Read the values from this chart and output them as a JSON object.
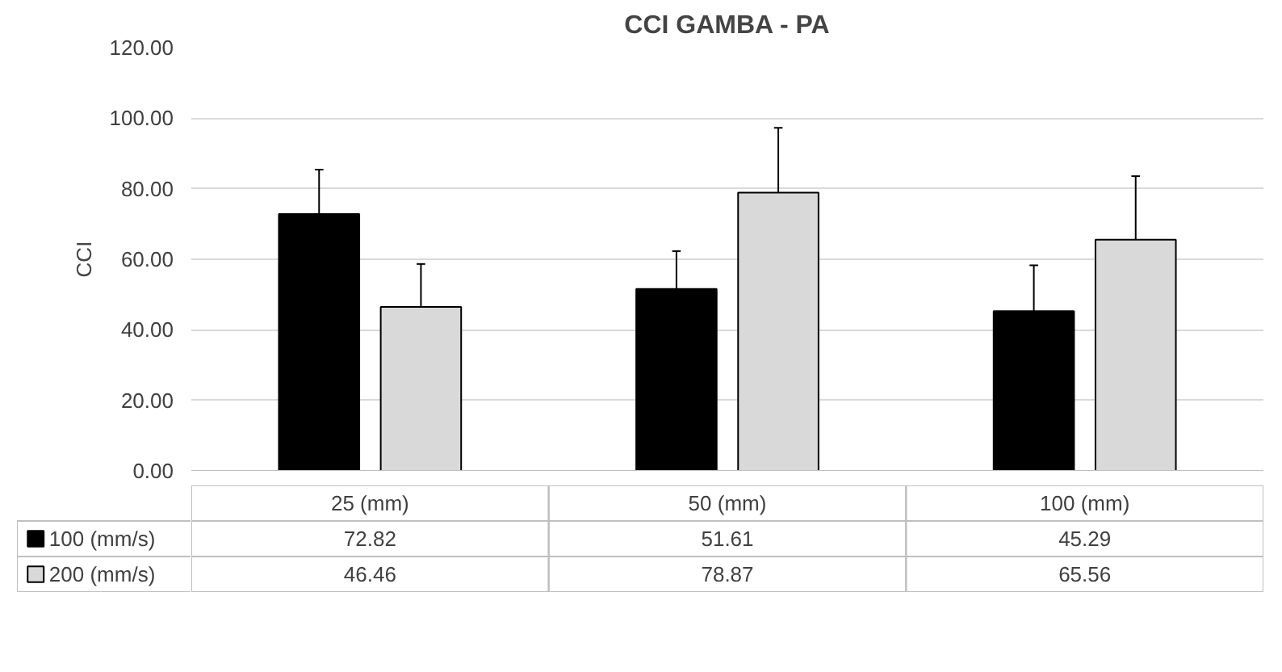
{
  "chart_data": {
    "type": "bar",
    "title": "CCI GAMBA - PA",
    "ylabel": "CCI",
    "categories": [
      "25 (mm)",
      "50 (mm)",
      "100 (mm)"
    ],
    "series": [
      {
        "name": "100 (mm/s)",
        "color": "#000000",
        "values": [
          72.82,
          51.61,
          45.29
        ],
        "errors": [
          12.6,
          10.7,
          13.0
        ]
      },
      {
        "name": "200 (mm/s)",
        "color": "#d9d9d9",
        "values": [
          46.46,
          78.87,
          65.56
        ],
        "errors": [
          12.2,
          18.4,
          18.0
        ]
      }
    ],
    "ylim": [
      0,
      120
    ],
    "yticks": [
      {
        "value": 0,
        "label": "0.00"
      },
      {
        "value": 20,
        "label": "20.00"
      },
      {
        "value": 40,
        "label": "40.00"
      },
      {
        "value": 60,
        "label": "60.00"
      },
      {
        "value": 80,
        "label": "80.00"
      },
      {
        "value": 100,
        "label": "100.00"
      },
      {
        "value": 120,
        "label": "120.00"
      }
    ],
    "grid": "y",
    "legend": "bottom",
    "data_labels": true
  }
}
